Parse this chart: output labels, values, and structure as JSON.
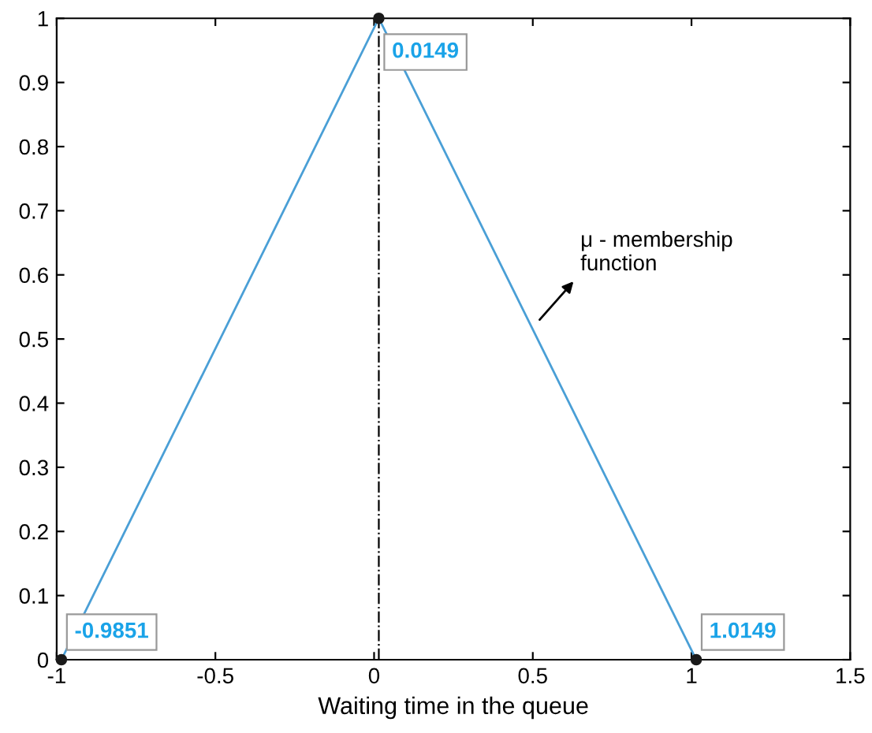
{
  "chart_data": {
    "type": "line",
    "xlabel": "Waiting time in the queue",
    "xlim": [
      -1,
      1.5
    ],
    "xticks": [
      -1,
      -0.5,
      0,
      0.5,
      1,
      1.5
    ],
    "ylim": [
      0,
      1
    ],
    "yticks": [
      0,
      0.1,
      0.2,
      0.3,
      0.4,
      0.5,
      0.6,
      0.7,
      0.8,
      0.9,
      1
    ],
    "grid": false,
    "series": [
      {
        "color": "#4a9fd6",
        "x": [
          -0.9851,
          0.0149,
          1.0149
        ],
        "values": [
          0,
          1,
          0
        ],
        "marker": "none"
      },
      {
        "type": "scatter",
        "color": "#1a1a1a",
        "x": [
          -0.9851,
          0.0149,
          1.0149
        ],
        "values": [
          0,
          1,
          0
        ],
        "marker": "circle"
      }
    ],
    "ref_lines": [
      {
        "axis": "x",
        "value": 0.0149,
        "color": "#000000",
        "line_style": "dashed"
      }
    ],
    "annotations": [
      {
        "text": "-0.9851",
        "x": -0.9851,
        "y": 0
      },
      {
        "text": "0.0149",
        "x": 0.0149,
        "y": 1
      },
      {
        "text": "1.0149",
        "x": 1.0149,
        "y": 0
      },
      "μ - membership\nfunction"
    ]
  }
}
